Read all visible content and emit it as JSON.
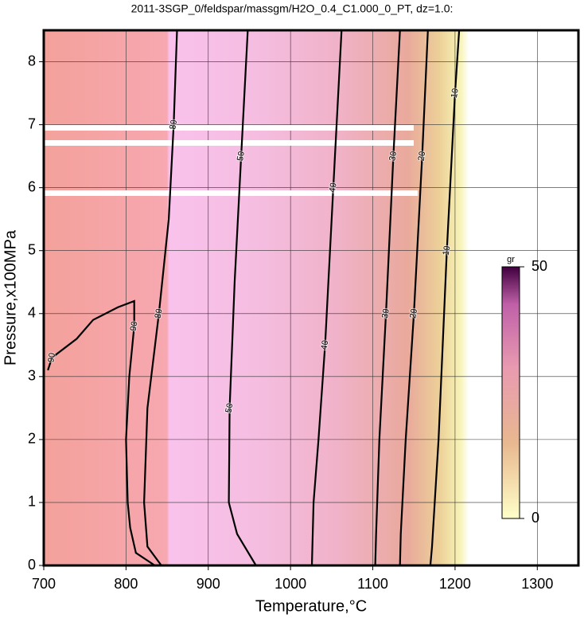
{
  "chart_data": {
    "type": "contour",
    "title": "2011-3SGP_0/feldspar/massgm/H2O_0.4_C1.000_0_PT, dz=1.0:",
    "x_label": "Temperature,°C",
    "y_label": "Pressure,x100MPa",
    "xlim": [
      700,
      1350
    ],
    "ylim": [
      0,
      8.5
    ],
    "xticks": [
      700,
      800,
      900,
      1000,
      1100,
      1200,
      1300
    ],
    "yticks": [
      0,
      1,
      2,
      3,
      4,
      5,
      6,
      7,
      8
    ],
    "grid": true,
    "contours": [
      {
        "level": 10,
        "x": [
          1170,
          1172,
          1180,
          1190,
          1200,
          1205
        ],
        "y": [
          0,
          0.3,
          2,
          5,
          7.5,
          8.5
        ]
      },
      {
        "level": 20,
        "x": [
          1133,
          1134,
          1140,
          1150,
          1160,
          1167
        ],
        "y": [
          0,
          0.5,
          2,
          4,
          6.5,
          8.5
        ]
      },
      {
        "level": 30,
        "x": [
          1103,
          1104,
          1108,
          1116,
          1125,
          1133
        ],
        "y": [
          0,
          0.5,
          2,
          4,
          6.5,
          8.5
        ]
      },
      {
        "level": 40,
        "x": [
          1026,
          1028,
          1034,
          1042,
          1052,
          1062
        ],
        "y": [
          0,
          1,
          2,
          3.5,
          6,
          8.5
        ]
      },
      {
        "level": 50,
        "x": [
          958,
          935,
          925,
          926,
          932,
          940,
          948
        ],
        "y": [
          0,
          0.5,
          1,
          2.5,
          4.5,
          6.5,
          8.5
        ]
      },
      {
        "level": 80,
        "x": [
          843,
          826,
          822,
          826,
          840,
          852,
          858,
          862
        ],
        "y": [
          0,
          0.3,
          1,
          2.5,
          4,
          5.5,
          7,
          8.5
        ]
      },
      {
        "level": 90,
        "x": [
          835,
          812,
          805,
          802,
          800,
          804,
          810,
          810,
          790,
          760,
          740,
          710,
          705
        ],
        "y": [
          0,
          0.2,
          0.6,
          1,
          2,
          3,
          3.8,
          4.2,
          4.1,
          3.9,
          3.6,
          3.3,
          3.1
        ]
      }
    ],
    "colorbar": {
      "label": "gr",
      "lim": [
        0,
        50
      ],
      "ticks": [
        0,
        50
      ]
    }
  }
}
